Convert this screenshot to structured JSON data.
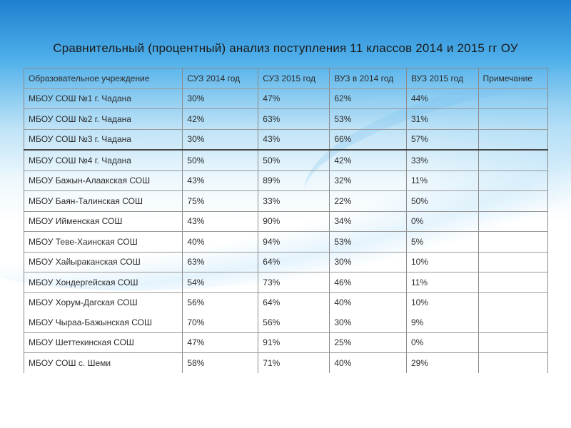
{
  "title": "Сравнительный (процентный) анализ поступления 11 классов 2014 и 2015 гг ОУ",
  "headers": [
    "Образовательное учреждение",
    "СУЗ 2014 год",
    "СУЗ 2015 год",
    "ВУЗ в 2014 год",
    "ВУЗ 2015 год",
    "Примечание"
  ],
  "rows": [
    [
      "МБОУ СОШ №1 г. Чадана",
      "30%",
      "47%",
      "62%",
      "44%",
      ""
    ],
    [
      "МБОУ СОШ №2 г. Чадана",
      "42%",
      "63%",
      "53%",
      "31%",
      ""
    ],
    [
      "МБОУ СОШ №3 г. Чадана",
      "30%",
      "43%",
      "66%",
      "57%",
      ""
    ],
    [
      "МБОУ СОШ №4 г. Чадана",
      "50%",
      "50%",
      "42%",
      "33%",
      ""
    ],
    [
      "МБОУ Бажын-Алаакская СОШ",
      "43%",
      "89%",
      "32%",
      "11%",
      ""
    ],
    [
      "МБОУ Баян-Талинская СОШ",
      "75%",
      "33%",
      "22%",
      "50%",
      ""
    ],
    [
      "МБОУ Ийменская СОШ",
      "43%",
      "90%",
      "34%",
      "0%",
      ""
    ],
    [
      "МБОУ Теве-Хаинская СОШ",
      "40%",
      "94%",
      "53%",
      "5%",
      ""
    ],
    [
      "МБОУ Хайыраканская СОШ",
      "63%",
      "64%",
      "30%",
      "10%",
      ""
    ],
    [
      "МБОУ Хондергейская СОШ",
      "54%",
      "73%",
      "46%",
      "11%",
      ""
    ],
    [
      "МБОУ Хорум-Дагская СОШ",
      "56%",
      "64%",
      "40%",
      "10%",
      ""
    ],
    [
      "МБОУ Чыраа-Бажынская СОШ",
      "70%",
      "56%",
      "30%",
      "9%",
      ""
    ],
    [
      "МБОУ Шеттекинская СОШ",
      "47%",
      "91%",
      "25%",
      "0%",
      ""
    ],
    [
      "МБОУ СОШ с. Шеми",
      "58%",
      "71%",
      "40%",
      "29%",
      ""
    ]
  ]
}
